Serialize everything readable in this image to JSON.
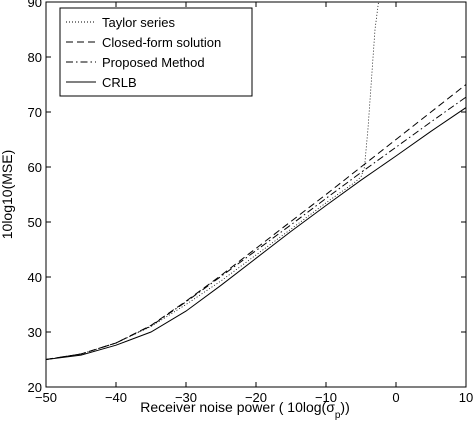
{
  "chart_data": {
    "type": "line",
    "title": "",
    "xlabel": "Receiver noise power ( 10log(σ",
    "xlabel_sub": "p",
    "xlabel_tail": "))",
    "ylabel": "10log10(MSE)",
    "xlim": [
      -50,
      10
    ],
    "ylim": [
      20,
      90
    ],
    "xticks": [
      -50,
      -40,
      -30,
      -20,
      -10,
      0,
      10
    ],
    "yticks": [
      20,
      30,
      40,
      50,
      60,
      70,
      80,
      90
    ],
    "xtick_labels": [
      "−50",
      "−40",
      "−30",
      "−20",
      "−10",
      "0",
      "10"
    ],
    "ytick_labels": [
      "20",
      "30",
      "40",
      "50",
      "60",
      "70",
      "80",
      "90"
    ],
    "grid": false,
    "legend_position": "top-left",
    "series": [
      {
        "name": "Taylor series",
        "style": "dotted",
        "x": [
          -50,
          -45,
          -40,
          -35,
          -30,
          -25,
          -20,
          -15,
          -10,
          -6,
          -5,
          -4.5,
          -4,
          -3.5,
          -3,
          -2.5
        ],
        "y": [
          25,
          26,
          28,
          31,
          35,
          39.3,
          44,
          48.7,
          53.5,
          57.1,
          58.2,
          60,
          67,
          76,
          85,
          90
        ]
      },
      {
        "name": "Closed-form solution",
        "style": "dashed",
        "x": [
          -50,
          -45,
          -40,
          -35,
          -30,
          -25,
          -20,
          -15,
          -10,
          -5,
          0,
          5,
          10
        ],
        "y": [
          25,
          26,
          28,
          31.2,
          35.6,
          40.3,
          45.2,
          50.1,
          55,
          60,
          65,
          70,
          75
        ]
      },
      {
        "name": "Proposed Method",
        "style": "dashdot",
        "x": [
          -50,
          -45,
          -40,
          -35,
          -30,
          -25,
          -20,
          -15,
          -10,
          -5,
          0,
          5,
          10
        ],
        "y": [
          25,
          26,
          28,
          31.1,
          35.5,
          40.1,
          44.8,
          49.5,
          54.3,
          59,
          63.6,
          68.2,
          72.7
        ]
      },
      {
        "name": "CRLB",
        "style": "solid",
        "x": [
          -50,
          -45,
          -40,
          -35,
          -30,
          -25,
          -20,
          -15,
          -10,
          -5,
          0,
          5,
          10
        ],
        "y": [
          25,
          25.8,
          27.6,
          30,
          33.8,
          38.5,
          43.4,
          48.3,
          53,
          57.6,
          62,
          66.5,
          70.8
        ]
      }
    ]
  }
}
